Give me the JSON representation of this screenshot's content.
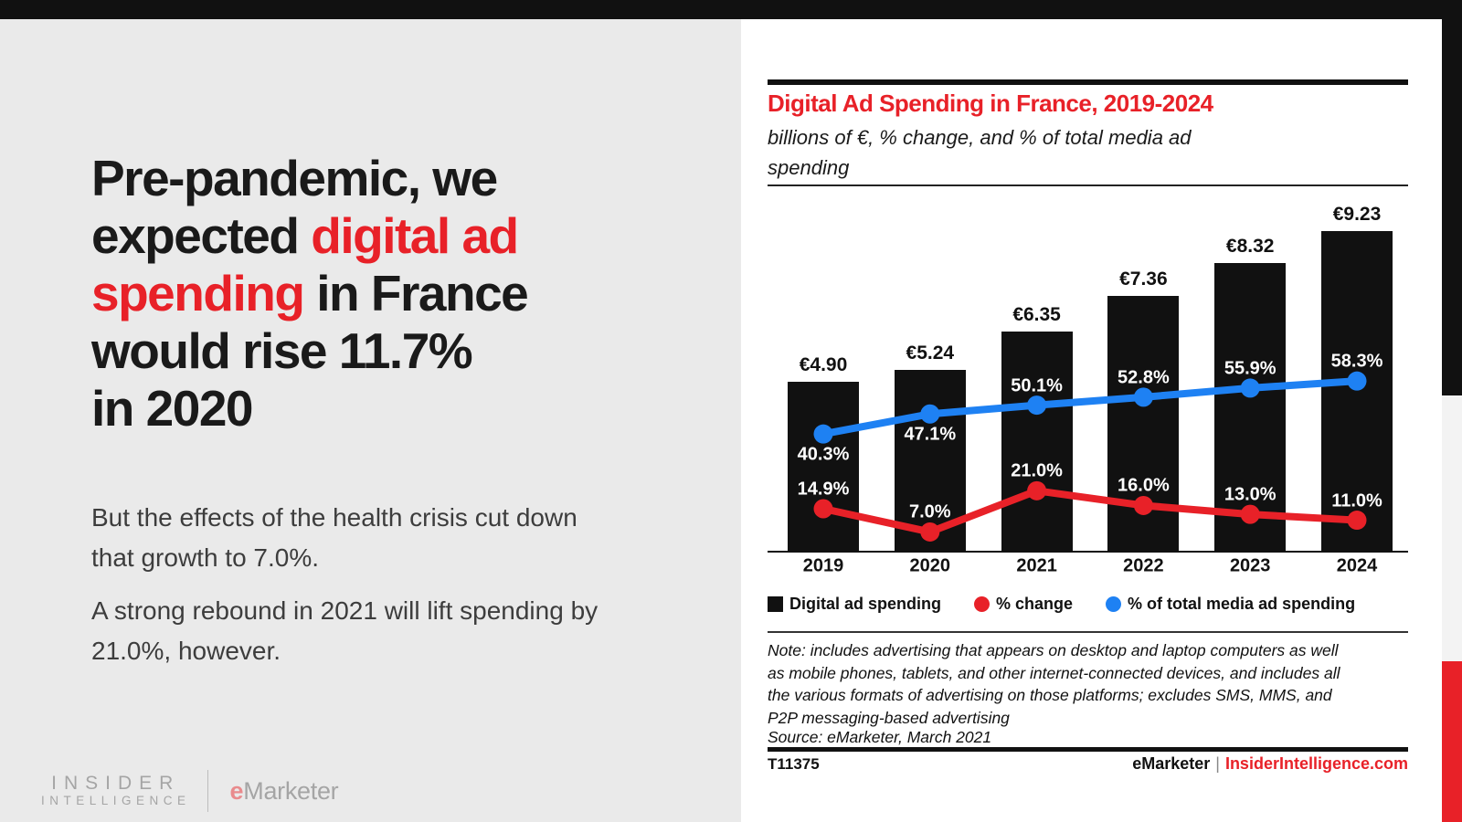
{
  "colors": {
    "accent_red": "#e82128",
    "line_blue": "#1e81f3",
    "bar_black": "#111111",
    "panel_gray": "#eaeaea",
    "strip_gray": "#f3f3f3",
    "ink": "#1a1a1a",
    "body_gray": "#3d3d3d",
    "logo_gray": "#a5a5a5",
    "logo_e_red": "#e98b8d"
  },
  "left_panel": {
    "headline": {
      "lines": [
        [
          {
            "t": "Pre-pandemic, we",
            "c": "dark"
          }
        ],
        [
          {
            "t": "expected ",
            "c": "dark"
          },
          {
            "t": "digital ad",
            "c": "red"
          }
        ],
        [
          {
            "t": "spending",
            "c": "red"
          },
          {
            "t": " in France",
            "c": "dark"
          }
        ],
        [
          {
            "t": "would rise 11.7%",
            "c": "dark"
          }
        ],
        [
          {
            "t": "in 2020",
            "c": "dark"
          }
        ]
      ]
    },
    "paragraphs": [
      {
        "lines": [
          "But the effects of the health crisis cut down",
          "that growth to 7.0%."
        ]
      },
      {
        "lines": [
          "A strong rebound in 2021 will lift spending by",
          "21.0%, however."
        ]
      }
    ],
    "logo": {
      "line1": "INSIDER",
      "line2": "INTELLIGENCE",
      "emarketer_e": "e",
      "emarketer_rest": "Marketer"
    }
  },
  "chart_data": {
    "type": "bar+line",
    "title": "Digital Ad Spending in France, 2019-2024",
    "subtitle": "billions of €, % change, and % of total media ad spending",
    "subtitle_lines": [
      "billions of €, % change, and % of total media ad",
      "spending"
    ],
    "categories": [
      "2019",
      "2020",
      "2021",
      "2022",
      "2023",
      "2024"
    ],
    "series": [
      {
        "name": "Digital ad spending",
        "render": "bar",
        "unit": "billions of €",
        "color": "#111111",
        "values": [
          4.9,
          5.24,
          6.35,
          7.36,
          8.32,
          9.23
        ],
        "labels": [
          "€4.90",
          "€5.24",
          "€6.35",
          "€7.36",
          "€8.32",
          "€9.23"
        ]
      },
      {
        "name": "% change",
        "render": "line",
        "unit": "%",
        "color": "#e82128",
        "values": [
          14.9,
          7.0,
          21.0,
          16.0,
          13.0,
          11.0
        ],
        "labels": [
          "14.9%",
          "7.0%",
          "21.0%",
          "16.0%",
          "13.0%",
          "11.0%"
        ],
        "label_side": [
          "above",
          "above",
          "above",
          "above",
          "above",
          "above"
        ]
      },
      {
        "name": "% of total media ad spending",
        "render": "line",
        "unit": "%",
        "color": "#1e81f3",
        "values": [
          40.3,
          47.1,
          50.1,
          52.8,
          55.9,
          58.3
        ],
        "labels": [
          "40.3%",
          "47.1%",
          "50.1%",
          "52.8%",
          "55.9%",
          "58.3%"
        ],
        "label_side": [
          "below",
          "below",
          "above",
          "above",
          "above",
          "above"
        ]
      }
    ],
    "legend": [
      {
        "label": "Digital ad spending",
        "swatch": "square",
        "color": "#111111"
      },
      {
        "label": "% change",
        "swatch": "dot",
        "color": "#e82128"
      },
      {
        "label": "% of total media ad spending",
        "swatch": "dot",
        "color": "#1e81f3"
      }
    ],
    "legend_position": "bottom",
    "grid": false,
    "note_lines": [
      "Note: includes advertising that appears on desktop and laptop computers as well",
      "as mobile phones, tablets, and other internet-connected devices, and includes all",
      "the various formats of advertising on those platforms; excludes SMS, MMS, and",
      "P2P messaging-based advertising"
    ],
    "source": "Source: eMarketer, March 2021"
  },
  "footer": {
    "chart_id": "T11375",
    "brand": "eMarketer",
    "separator": "|",
    "site": "InsiderIntelligence.com"
  }
}
